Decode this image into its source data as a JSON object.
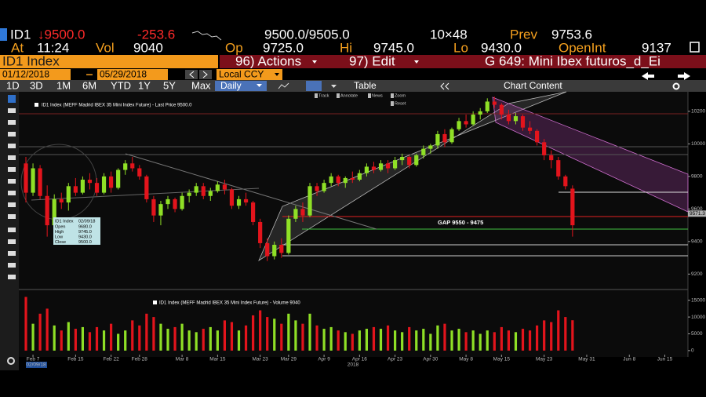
{
  "header": {
    "ticker": "ID1",
    "last": "↓9500.0",
    "change": "-253.6",
    "bid_ask": "9500.0/9505.0",
    "size": "10×48",
    "prev_label": "Prev",
    "prev": "9753.6",
    "time_label": "At",
    "time": "11:24",
    "vol_label": "Vol",
    "vol": "9040",
    "open_label": "Op",
    "open": "9725.0",
    "high_label": "Hi",
    "high": "9745.0",
    "low_label": "Lo",
    "low": "9430.0",
    "oi_label": "OpenInt",
    "oi": "9137"
  },
  "menu": {
    "security": "ID1 Index",
    "actions": "96) Actions",
    "edit": "97) Edit",
    "template": "G 649: Mini Ibex futuros_d_Ei"
  },
  "range": {
    "start": "01/12/2018",
    "end": "05/29/2018",
    "currency": "Local CCY"
  },
  "toolbar": {
    "periods": [
      "1D",
      "3D",
      "1M",
      "6M",
      "YTD",
      "1Y",
      "5Y",
      "Max"
    ],
    "frequency": "Daily",
    "table": "Table",
    "content": "Chart Content",
    "tools": [
      "Track",
      "Annotate",
      "News",
      "Zoom",
      "Reset"
    ]
  },
  "chart_data": {
    "type": "candlestick",
    "title": "ID1 Index (MEFF Madrid IBEX 35 Mini Index Future) - Last Price 9500.0",
    "categories": [
      null,
      "Feb 7",
      null,
      null,
      null,
      null,
      null,
      "Feb 15",
      null,
      null,
      null,
      null,
      "Feb 22",
      null,
      null,
      null,
      "Feb 28",
      null,
      null,
      null,
      null,
      null,
      "Mar 8",
      null,
      null,
      null,
      null,
      "Mar 15",
      null,
      null,
      null,
      null,
      null,
      "Mar 23",
      null,
      null,
      null,
      "Mar 29",
      null,
      null,
      null,
      null,
      "Apr 9",
      null,
      null,
      null,
      null,
      "Apr 16",
      null,
      null,
      null,
      null,
      "Apr 23",
      null,
      null,
      null,
      null,
      "Apr 30",
      null,
      null,
      null,
      null,
      "May 8",
      null,
      null,
      null,
      null,
      "May 15",
      null,
      null,
      null,
      null,
      null,
      "May 23",
      null,
      null,
      null,
      null,
      null,
      "May 31",
      null,
      null,
      null,
      null,
      null,
      "Jun 8",
      null,
      null,
      null,
      null,
      "Jun 15",
      null,
      null
    ],
    "open": [
      9880,
      9700,
      9850,
      9680,
      9500,
      9660,
      9640,
      9740,
      9700,
      9780,
      9760,
      9700,
      9800,
      9730,
      9840,
      9880,
      9850,
      9800,
      9660,
      9560,
      9630,
      9660,
      9600,
      9680,
      9700,
      9740,
      9680,
      9710,
      9750,
      9720,
      9620,
      9660,
      9640,
      9520,
      9390,
      9310,
      9380,
      9330,
      9540,
      9600,
      9560,
      9740,
      9710,
      9760,
      9800,
      9760,
      9790,
      9780,
      9820,
      9860,
      9840,
      9880,
      9850,
      9900,
      9920,
      9870,
      9930,
      9970,
      9990,
      10060,
      10010,
      10090,
      10140,
      10120,
      10180,
      10200,
      10260,
      10240,
      10180,
      10140,
      10170,
      10100,
      10080,
      10010,
      9930,
      9900,
      9800,
      9725,
      null,
      null,
      null,
      null,
      null,
      null,
      null,
      null,
      null,
      null,
      null,
      null,
      null,
      null,
      null
    ],
    "high": [
      9920,
      9880,
      9870,
      9745,
      9690,
      9700,
      9760,
      9790,
      9800,
      9820,
      9790,
      9820,
      9830,
      9850,
      9900,
      9920,
      9870,
      9810,
      9680,
      9650,
      9680,
      9670,
      9700,
      9720,
      9760,
      9760,
      9730,
      9770,
      9780,
      9730,
      9680,
      9700,
      9650,
      9540,
      9420,
      9400,
      9420,
      9560,
      9620,
      9640,
      9760,
      9760,
      9780,
      9820,
      9810,
      9800,
      9830,
      9840,
      9880,
      9890,
      9900,
      9900,
      9920,
      9940,
      9930,
      9940,
      9990,
      10000,
      10080,
      10090,
      10100,
      10160,
      10180,
      10200,
      10220,
      10280,
      10290,
      10250,
      10210,
      10190,
      10180,
      10140,
      10090,
      10030,
      9960,
      9920,
      9810,
      9745,
      null,
      null,
      null,
      null,
      null,
      null,
      null,
      null,
      null,
      null,
      null,
      null,
      null,
      null,
      null
    ],
    "low": [
      9640,
      9680,
      9660,
      9430,
      9480,
      9600,
      9590,
      9680,
      9690,
      9720,
      9680,
      9690,
      9700,
      9720,
      9810,
      9830,
      9780,
      9640,
      9520,
      9500,
      9600,
      9580,
      9590,
      9640,
      9680,
      9660,
      9650,
      9700,
      9690,
      9600,
      9600,
      9620,
      9500,
      9360,
      9280,
      9290,
      9300,
      9320,
      9520,
      9520,
      9550,
      9680,
      9700,
      9740,
      9740,
      9730,
      9760,
      9770,
      9800,
      9820,
      9830,
      9820,
      9840,
      9870,
      9850,
      9860,
      9910,
      9940,
      9970,
      9980,
      10000,
      10080,
      10100,
      10110,
      10150,
      10190,
      10220,
      10150,
      10120,
      10120,
      10080,
      10060,
      9990,
      9900,
      9850,
      9780,
      9720,
      9430,
      null,
      null,
      null,
      null,
      null,
      null,
      null,
      null,
      null,
      null,
      null,
      null,
      null,
      null,
      null
    ],
    "close": [
      9700,
      9850,
      9680,
      9500,
      9660,
      9640,
      9740,
      9700,
      9780,
      9760,
      9700,
      9800,
      9730,
      9840,
      9880,
      9850,
      9800,
      9660,
      9560,
      9630,
      9660,
      9600,
      9680,
      9700,
      9740,
      9680,
      9710,
      9750,
      9720,
      9620,
      9660,
      9640,
      9520,
      9390,
      9310,
      9380,
      9330,
      9540,
      9600,
      9560,
      9740,
      9710,
      9760,
      9800,
      9760,
      9790,
      9780,
      9820,
      9860,
      9840,
      9880,
      9850,
      9900,
      9920,
      9870,
      9930,
      9970,
      9990,
      10060,
      10010,
      10090,
      10140,
      10120,
      10180,
      10200,
      10260,
      10240,
      10180,
      10140,
      10170,
      10100,
      10080,
      10010,
      9930,
      9900,
      9800,
      9740,
      9500,
      null,
      null,
      null,
      null,
      null,
      null,
      null,
      null,
      null,
      null,
      null,
      null,
      null,
      null,
      null
    ],
    "up_color": "#8fe026",
    "down_color": "#e3141c",
    "ylim": [
      9110,
      10320
    ],
    "yticks": [
      9200,
      9400,
      9600,
      9800,
      10000,
      10200
    ],
    "price_marker": 9571.3,
    "annotation": "GAP 9550 - 9475",
    "year_label": "2018",
    "cursor_date": "02/09/18",
    "tooltip": {
      "title": "ID1 Index",
      "date": "02/09/18",
      "rows": [
        {
          "label": "Open",
          "value": "9680.0"
        },
        {
          "label": "High",
          "value": "9745.0"
        },
        {
          "label": "Low",
          "value": "9430.0"
        },
        {
          "label": "Close",
          "value": "9500.0"
        }
      ]
    },
    "volume": {
      "title": "ID1 Index (MEFF Madrid IBEX 35 Mini Index Future) - Volume 9040",
      "values": [
        16000,
        8000,
        11000,
        12500,
        7500,
        6000,
        8500,
        6500,
        7000,
        5500,
        7000,
        6000,
        8000,
        5000,
        6000,
        9000,
        7500,
        11000,
        10000,
        8000,
        6500,
        7000,
        8000,
        6000,
        5500,
        6500,
        7000,
        6000,
        9000,
        8500,
        6000,
        7500,
        10500,
        12000,
        10000,
        9500,
        8000,
        11000,
        9000,
        8000,
        11000,
        7500,
        6500,
        7000,
        6000,
        5500,
        5000,
        6000,
        6500,
        7000,
        6500,
        7500,
        6000,
        5500,
        7000,
        6000,
        6500,
        5000,
        7500,
        8000,
        6000,
        6500,
        5500,
        6000,
        5000,
        6000,
        5500,
        7000,
        6000,
        5500,
        6500,
        6000,
        7500,
        9000,
        8500,
        12000,
        10000,
        9040,
        null,
        null,
        null,
        null,
        null,
        null,
        null,
        null,
        null,
        null,
        null,
        null,
        null,
        null,
        null
      ],
      "ylim": [
        -1200,
        17500
      ],
      "yticks": [
        0,
        5000,
        10000,
        15000
      ]
    }
  }
}
